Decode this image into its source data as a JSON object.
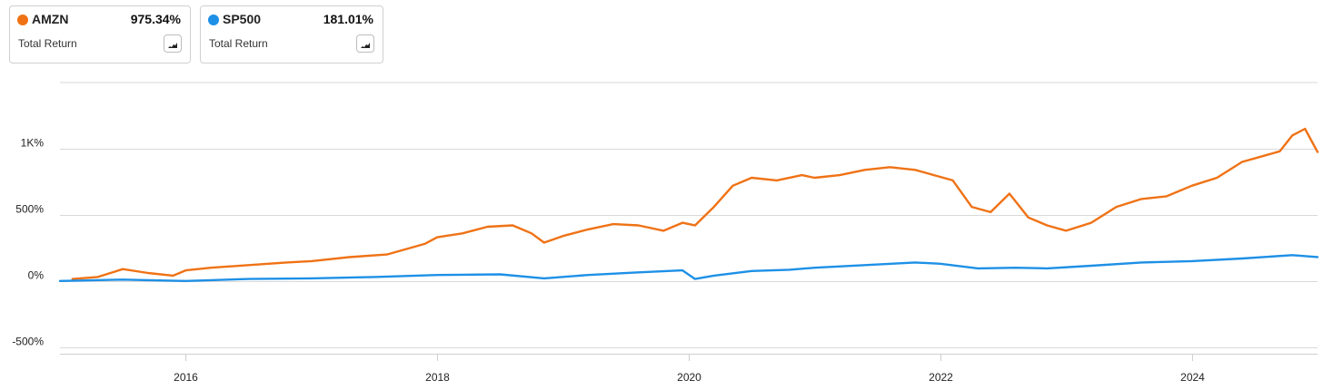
{
  "legend": [
    {
      "ticker": "AMZN",
      "value": "975.34%",
      "metric": "Total Return",
      "color": "#ef7215",
      "icon": "mini-chart-icon"
    },
    {
      "ticker": "SP500",
      "value": "181.01%",
      "metric": "Total Return",
      "color": "#1e90e6",
      "icon": "mini-chart-icon"
    }
  ],
  "chart_data": {
    "type": "line",
    "xlabel": "",
    "ylabel": "",
    "x_range": [
      2015.0,
      2025.0
    ],
    "ylim": [
      -550,
      1500
    ],
    "y_ticks": [
      {
        "value": 1000,
        "label": "1K%"
      },
      {
        "value": 500,
        "label": "500%"
      },
      {
        "value": 0,
        "label": "0%"
      },
      {
        "value": -500,
        "label": "-500%"
      }
    ],
    "x_ticks": [
      {
        "value": 2016,
        "label": "2016"
      },
      {
        "value": 2018,
        "label": "2018"
      },
      {
        "value": 2020,
        "label": "2020"
      },
      {
        "value": 2022,
        "label": "2022"
      },
      {
        "value": 2024,
        "label": "2024"
      }
    ],
    "grid": "horizontal",
    "series": [
      {
        "name": "AMZN",
        "color": "#ef7215",
        "x": [
          2015.1,
          2015.3,
          2015.5,
          2015.7,
          2015.9,
          2016.0,
          2016.2,
          2016.5,
          2016.8,
          2017.0,
          2017.3,
          2017.6,
          2017.9,
          2018.0,
          2018.2,
          2018.4,
          2018.6,
          2018.75,
          2018.85,
          2019.0,
          2019.2,
          2019.4,
          2019.6,
          2019.8,
          2019.95,
          2020.05,
          2020.2,
          2020.35,
          2020.5,
          2020.7,
          2020.9,
          2021.0,
          2021.2,
          2021.4,
          2021.6,
          2021.8,
          2021.95,
          2022.1,
          2022.25,
          2022.4,
          2022.55,
          2022.7,
          2022.85,
          2023.0,
          2023.2,
          2023.4,
          2023.6,
          2023.8,
          2024.0,
          2024.2,
          2024.4,
          2024.55,
          2024.7,
          2024.8,
          2024.9,
          2025.0
        ],
        "values": [
          15,
          30,
          90,
          60,
          40,
          80,
          100,
          120,
          140,
          150,
          180,
          200,
          280,
          330,
          360,
          410,
          420,
          360,
          290,
          340,
          390,
          430,
          420,
          380,
          440,
          420,
          560,
          720,
          780,
          760,
          800,
          780,
          800,
          840,
          860,
          840,
          800,
          760,
          560,
          520,
          660,
          480,
          420,
          380,
          440,
          560,
          620,
          640,
          720,
          780,
          900,
          940,
          980,
          1100,
          1150,
          975
        ]
      },
      {
        "name": "SP500",
        "color": "#1e90e6",
        "x": [
          2015.0,
          2015.5,
          2016.0,
          2016.5,
          2017.0,
          2017.5,
          2018.0,
          2018.5,
          2018.85,
          2019.2,
          2019.6,
          2019.95,
          2020.05,
          2020.2,
          2020.5,
          2020.8,
          2021.0,
          2021.4,
          2021.8,
          2022.0,
          2022.3,
          2022.6,
          2022.85,
          2023.2,
          2023.6,
          2024.0,
          2024.4,
          2024.8,
          2025.0
        ],
        "values": [
          0,
          10,
          0,
          15,
          20,
          30,
          45,
          50,
          20,
          45,
          65,
          80,
          15,
          40,
          75,
          85,
          100,
          120,
          140,
          130,
          95,
          100,
          95,
          115,
          140,
          150,
          170,
          195,
          181
        ]
      }
    ]
  }
}
